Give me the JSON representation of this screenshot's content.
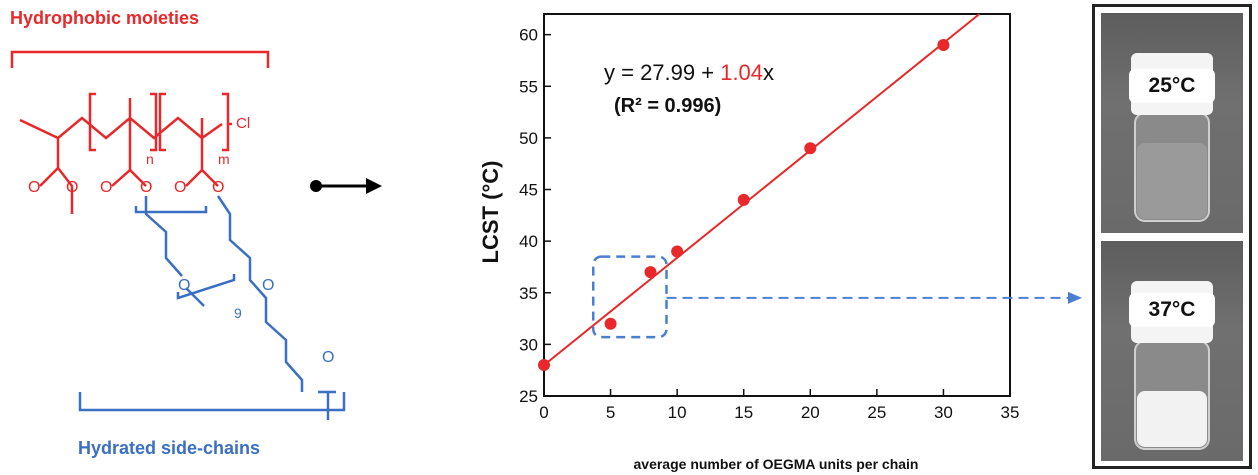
{
  "scheme": {
    "hydrophobic_label": "Hydrophobic moieties",
    "hydrated_label": "Hydrated side-chains",
    "subscript_n": "n",
    "subscript_m": "m",
    "subscript_9": "9",
    "end_group": "Cl",
    "atom_o": "O"
  },
  "equation": {
    "prefix": "y = 27.99 + ",
    "slope": "1.04",
    "suffix": "x",
    "r2": "(R² = 0.996)"
  },
  "photos": {
    "top_temp": "25°C",
    "bottom_temp": "37°C"
  },
  "colors": {
    "red": "#e8282a",
    "blue": "#3a6fc4",
    "dashed_blue": "#4a7fd0"
  },
  "chart_data": {
    "type": "scatter",
    "xlabel": "average number of OEGMA units per chain",
    "ylabel": "LCST (°C)",
    "xlim": [
      0,
      35
    ],
    "ylim": [
      25,
      62
    ],
    "xticks": [
      0,
      5,
      10,
      15,
      20,
      25,
      30,
      35
    ],
    "yticks": [
      25,
      30,
      35,
      40,
      45,
      50,
      55,
      60
    ],
    "points": [
      {
        "x": 0,
        "y": 28
      },
      {
        "x": 5,
        "y": 32
      },
      {
        "x": 8,
        "y": 37
      },
      {
        "x": 10,
        "y": 39
      },
      {
        "x": 15,
        "y": 44
      },
      {
        "x": 20,
        "y": 49
      },
      {
        "x": 30,
        "y": 59
      }
    ],
    "fit": {
      "intercept": 27.99,
      "slope": 1.04
    },
    "grid": false
  }
}
